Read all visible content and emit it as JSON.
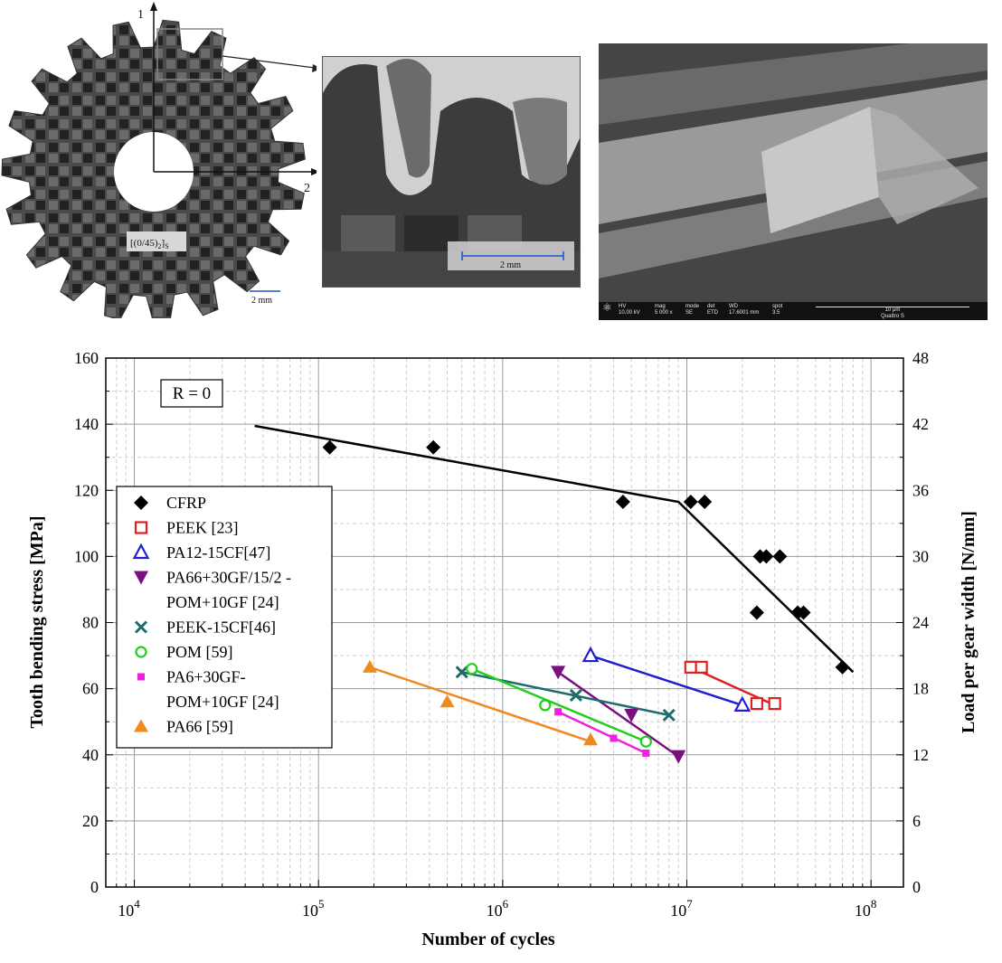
{
  "gear_image": {
    "layup_label": "[(0/45)",
    "layup_sub": "2",
    "layup_close": "]",
    "layup_sub2": "S",
    "axis_1": "1",
    "axis_2": "2",
    "scale": "2 mm"
  },
  "zoom_image": {
    "scale": "2 mm"
  },
  "sem_image": {
    "hv_label": "HV",
    "hv_value": "10.00 kV",
    "mag_label": "mag",
    "mag_value": "5 000 x",
    "mode_label": "mode",
    "mode_value": "SE",
    "det_label": "det",
    "det_value": "ETD",
    "wd_label": "WD",
    "wd_value": "17.6001 mm",
    "spot_label": "spot",
    "spot_value": "3.5",
    "scale": "10 μm",
    "instrument": "Quattro S"
  },
  "chart_data": {
    "type": "scatter",
    "annotation": "R = 0",
    "xlabel": "Number of cycles",
    "ylabel": "Tooth bending stress [MPa]",
    "y2label": "Load per gear width [N/mm]",
    "xscale": "log",
    "xlim": [
      7000,
      150000000
    ],
    "ylim": [
      0,
      160
    ],
    "y2lim": [
      0,
      48
    ],
    "x_ticks": [
      {
        "base": "10",
        "exp": "4",
        "value": 10000
      },
      {
        "base": "10",
        "exp": "5",
        "value": 100000
      },
      {
        "base": "10",
        "exp": "6",
        "value": 1000000
      },
      {
        "base": "10",
        "exp": "7",
        "value": 10000000
      },
      {
        "base": "10",
        "exp": "8",
        "value": 100000000
      }
    ],
    "y_ticks": [
      "0",
      "20",
      "40",
      "60",
      "80",
      "100",
      "120",
      "140",
      "160"
    ],
    "y2_ticks": [
      "0",
      "6",
      "12",
      "18",
      "24",
      "30",
      "36",
      "42",
      "48"
    ],
    "grid": true,
    "legend_position": "left",
    "series": [
      {
        "name": "CFRP",
        "color": "#000000",
        "marker": "diamond",
        "points": [
          [
            115000,
            133
          ],
          [
            420000,
            133
          ],
          [
            4500000,
            116.5
          ],
          [
            10500000,
            116.5
          ],
          [
            12500000,
            116.5
          ],
          [
            25000000,
            100
          ],
          [
            27000000,
            100
          ],
          [
            32000000,
            100
          ],
          [
            24000000,
            83
          ],
          [
            40000000,
            83
          ],
          [
            43000000,
            83
          ],
          [
            70000000,
            66.5
          ]
        ],
        "fit": [
          [
            45000,
            139.5
          ],
          [
            9000000,
            116.5
          ],
          [
            80000000,
            65
          ]
        ]
      },
      {
        "name": "PEEK [23]",
        "color": "#e02020",
        "marker": "square",
        "points": [
          [
            10500000,
            66.5
          ],
          [
            12000000,
            66.5
          ],
          [
            24000000,
            55.5
          ],
          [
            30000000,
            55.5
          ]
        ],
        "fit": [
          [
            10500000,
            66.5
          ],
          [
            30000000,
            55
          ]
        ]
      },
      {
        "name": "PA12-15CF[47]",
        "color": "#1f1fd0",
        "marker": "triangle-up",
        "points": [
          [
            3000000,
            70
          ],
          [
            20000000,
            55
          ]
        ],
        "fit": [
          [
            3000000,
            70
          ],
          [
            20000000,
            55
          ]
        ]
      },
      {
        "name": "PA66+30GF/15/2 - POM+10GF [24]",
        "legend_lines": [
          "PA66+30GF/15/2 -",
          "POM+10GF [24]"
        ],
        "color": "#7a1080",
        "marker": "triangle-down",
        "points": [
          [
            2000000,
            65
          ],
          [
            5000000,
            52
          ],
          [
            9000000,
            39.5
          ]
        ],
        "fit": [
          [
            2000000,
            65
          ],
          [
            9000000,
            39.5
          ]
        ]
      },
      {
        "name": "PEEK-15CF[46]",
        "color": "#1e6b6b",
        "marker": "x",
        "points": [
          [
            600000,
            65
          ],
          [
            2500000,
            58
          ],
          [
            8000000,
            52
          ]
        ],
        "fit": [
          [
            600000,
            65
          ],
          [
            8000000,
            52
          ]
        ]
      },
      {
        "name": "POM [59]",
        "color": "#20d020",
        "marker": "circle",
        "points": [
          [
            680000,
            66
          ],
          [
            1700000,
            55
          ],
          [
            6000000,
            44
          ]
        ],
        "fit": [
          [
            680000,
            66
          ],
          [
            6000000,
            44
          ]
        ]
      },
      {
        "name": "PA6+30GF- POM+10GF [24]",
        "legend_lines": [
          "PA6+30GF-",
          "POM+10GF [24]"
        ],
        "color": "#f020e0",
        "marker": "small-square",
        "points": [
          [
            2000000,
            53
          ],
          [
            4000000,
            45
          ],
          [
            6000000,
            40.5
          ]
        ],
        "fit": [
          [
            2000000,
            53
          ],
          [
            6000000,
            40.5
          ]
        ]
      },
      {
        "name": "PA66 [59]",
        "color": "#f08a1e",
        "marker": "triangle-up-filled",
        "points": [
          [
            190000,
            66.5
          ],
          [
            500000,
            56
          ],
          [
            3000000,
            44.5
          ]
        ],
        "fit": [
          [
            190000,
            66.5
          ],
          [
            3000000,
            44
          ]
        ]
      }
    ]
  }
}
